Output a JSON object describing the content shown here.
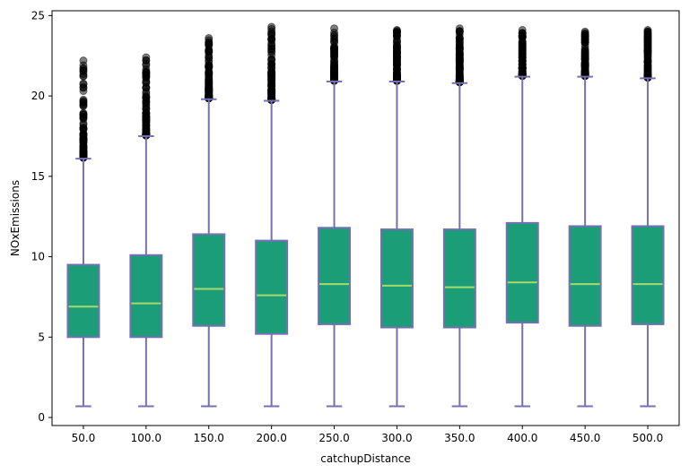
{
  "chart_data": {
    "type": "box",
    "xlabel": "catchupDistance",
    "ylabel": "NOxEmissions",
    "categories": [
      "50.0",
      "100.0",
      "150.0",
      "200.0",
      "250.0",
      "300.0",
      "350.0",
      "400.0",
      "450.0",
      "500.0"
    ],
    "ylim": [
      -0.5,
      25.3
    ],
    "yticks": [
      0,
      5,
      10,
      15,
      20,
      25
    ],
    "ytick_labels": [
      "0",
      "5",
      "10",
      "15",
      "20",
      "25"
    ],
    "grid": false,
    "colors": {
      "box_fill": "#1b9e77",
      "box_edge": "#7570b3",
      "median": "#a6d96a",
      "flier": "#000000"
    },
    "boxes": [
      {
        "category": "50.0",
        "whisker_low": 0.7,
        "q1": 5.0,
        "median": 6.9,
        "q3": 9.5,
        "whisker_high": 16.1,
        "flier_max": 22.2
      },
      {
        "category": "100.0",
        "whisker_low": 0.7,
        "q1": 5.0,
        "median": 7.1,
        "q3": 10.1,
        "whisker_high": 17.5,
        "flier_max": 22.4
      },
      {
        "category": "150.0",
        "whisker_low": 0.7,
        "q1": 5.7,
        "median": 8.0,
        "q3": 11.4,
        "whisker_high": 19.8,
        "flier_max": 23.6
      },
      {
        "category": "200.0",
        "whisker_low": 0.7,
        "q1": 5.2,
        "median": 7.6,
        "q3": 11.0,
        "whisker_high": 19.7,
        "flier_max": 24.3
      },
      {
        "category": "250.0",
        "whisker_low": 0.7,
        "q1": 5.8,
        "median": 8.3,
        "q3": 11.8,
        "whisker_high": 20.9,
        "flier_max": 24.2
      },
      {
        "category": "300.0",
        "whisker_low": 0.7,
        "q1": 5.6,
        "median": 8.2,
        "q3": 11.7,
        "whisker_high": 20.9,
        "flier_max": 24.1
      },
      {
        "category": "350.0",
        "whisker_low": 0.7,
        "q1": 5.6,
        "median": 8.1,
        "q3": 11.7,
        "whisker_high": 20.8,
        "flier_max": 24.2
      },
      {
        "category": "400.0",
        "whisker_low": 0.7,
        "q1": 5.9,
        "median": 8.4,
        "q3": 12.1,
        "whisker_high": 21.2,
        "flier_max": 24.1
      },
      {
        "category": "450.0",
        "whisker_low": 0.7,
        "q1": 5.7,
        "median": 8.3,
        "q3": 11.9,
        "whisker_high": 21.2,
        "flier_max": 24.0
      },
      {
        "category": "500.0",
        "whisker_low": 0.7,
        "q1": 5.8,
        "median": 8.3,
        "q3": 11.9,
        "whisker_high": 21.1,
        "flier_max": 24.1
      }
    ]
  }
}
